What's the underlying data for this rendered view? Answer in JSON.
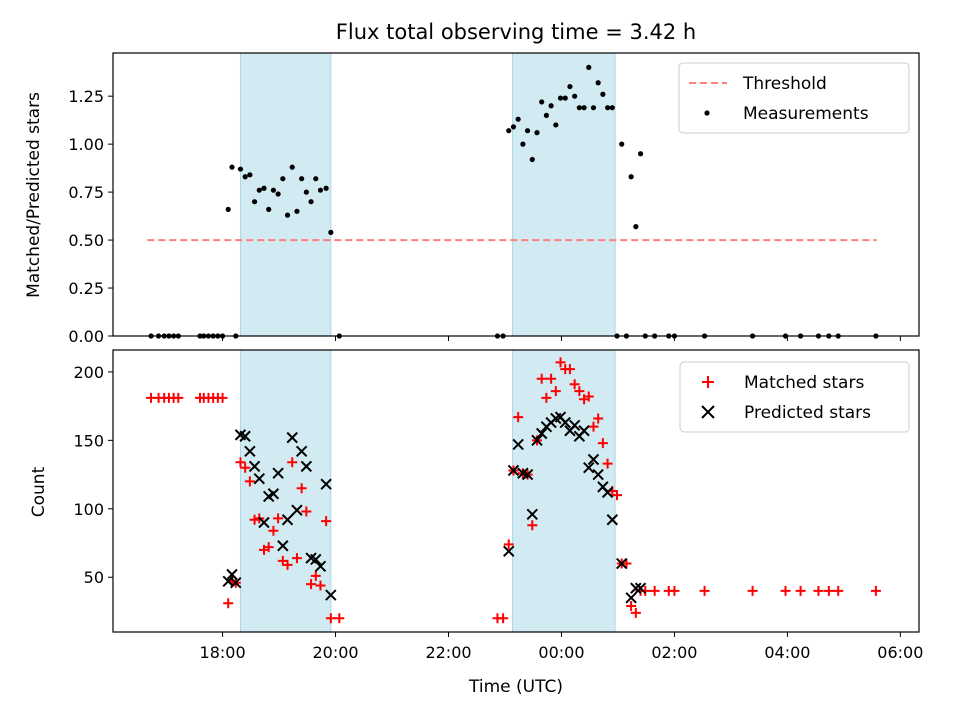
{
  "title": "Flux total observing time = 3.42 h",
  "colors": {
    "threshold": "#ff7f7f",
    "measurements": "#000000",
    "matched": "#ff0000",
    "predicted": "#000000",
    "shade": "#add8e6"
  },
  "chart_data": [
    {
      "type": "scatter",
      "panel": "top",
      "ylabel": "Matched/Predicted stars",
      "xlabel": "",
      "ylim": [
        0,
        1.475
      ],
      "yticks": [
        0.0,
        0.25,
        0.5,
        0.75,
        1.0,
        1.25
      ],
      "ytick_labels": [
        "0.00",
        "0.25",
        "0.50",
        "0.75",
        "1.00",
        "1.25"
      ],
      "shaded_intervals": [
        [
          "18:19",
          "19:55"
        ],
        [
          "23:08",
          "00:57"
        ]
      ],
      "legend_position": "upper right",
      "threshold": {
        "name": "Threshold",
        "y": 0.5,
        "x_start": "16:40",
        "x_end": "05:35"
      },
      "series": [
        {
          "name": "Measurements",
          "marker": "dot",
          "points": [
            [
              "16:44",
              0
            ],
            [
              "16:52",
              0
            ],
            [
              "16:58",
              0
            ],
            [
              "17:03",
              0
            ],
            [
              "17:08",
              0
            ],
            [
              "17:13",
              0
            ],
            [
              "17:36",
              0
            ],
            [
              "17:40",
              0
            ],
            [
              "17:45",
              0
            ],
            [
              "17:50",
              0
            ],
            [
              "17:55",
              0
            ],
            [
              "18:00",
              0
            ],
            [
              "18:06",
              0.66
            ],
            [
              "18:10",
              0.88
            ],
            [
              "18:14",
              0
            ],
            [
              "18:19",
              0.87
            ],
            [
              "18:24",
              0.83
            ],
            [
              "18:29",
              0.84
            ],
            [
              "18:34",
              0.7
            ],
            [
              "18:39",
              0.76
            ],
            [
              "18:44",
              0.77
            ],
            [
              "18:49",
              0.66
            ],
            [
              "18:54",
              0.76
            ],
            [
              "18:59",
              0.74
            ],
            [
              "19:04",
              0.82
            ],
            [
              "19:09",
              0.63
            ],
            [
              "19:14",
              0.88
            ],
            [
              "19:19",
              0.65
            ],
            [
              "19:24",
              0.82
            ],
            [
              "19:29",
              0.75
            ],
            [
              "19:34",
              0.7
            ],
            [
              "19:39",
              0.82
            ],
            [
              "19:44",
              0.76
            ],
            [
              "19:50",
              0.77
            ],
            [
              "19:55",
              0.54
            ],
            [
              "20:04",
              0
            ],
            [
              "22:52",
              0
            ],
            [
              "22:58",
              0
            ],
            [
              "23:04",
              1.07
            ],
            [
              "23:09",
              1.09
            ],
            [
              "23:14",
              1.13
            ],
            [
              "23:19",
              1.0
            ],
            [
              "23:24",
              1.07
            ],
            [
              "23:29",
              0.92
            ],
            [
              "23:34",
              1.06
            ],
            [
              "23:39",
              1.22
            ],
            [
              "23:44",
              1.15
            ],
            [
              "23:49",
              1.2
            ],
            [
              "23:54",
              1.1
            ],
            [
              "23:59",
              1.24
            ],
            [
              "00:04",
              1.24
            ],
            [
              "00:09",
              1.3
            ],
            [
              "00:14",
              1.25
            ],
            [
              "00:19",
              1.19
            ],
            [
              "00:24",
              1.19
            ],
            [
              "00:29",
              1.4
            ],
            [
              "00:34",
              1.19
            ],
            [
              "00:39",
              1.32
            ],
            [
              "00:44",
              1.26
            ],
            [
              "00:49",
              1.19
            ],
            [
              "00:54",
              1.19
            ],
            [
              "00:59",
              0
            ],
            [
              "01:04",
              1.0
            ],
            [
              "01:09",
              0
            ],
            [
              "01:14",
              0.83
            ],
            [
              "01:19",
              0.57
            ],
            [
              "01:24",
              0.95
            ],
            [
              "01:29",
              0
            ],
            [
              "01:39",
              0
            ],
            [
              "01:54",
              0
            ],
            [
              "02:00",
              0
            ],
            [
              "02:32",
              0
            ],
            [
              "03:23",
              0
            ],
            [
              "03:58",
              0
            ],
            [
              "04:14",
              0
            ],
            [
              "04:33",
              0
            ],
            [
              "04:44",
              0
            ],
            [
              "04:54",
              0
            ],
            [
              "05:34",
              0
            ]
          ]
        }
      ]
    },
    {
      "type": "scatter",
      "panel": "bottom",
      "ylabel": "Count",
      "xlabel": "Time (UTC)",
      "ylim": [
        10,
        216
      ],
      "yticks": [
        50,
        100,
        150,
        200
      ],
      "ytick_labels": [
        "50",
        "100",
        "150",
        "200"
      ],
      "xticks": [
        "18:00",
        "20:00",
        "22:00",
        "00:00",
        "02:00",
        "04:00",
        "06:00"
      ],
      "shaded_intervals": [
        [
          "18:19",
          "19:55"
        ],
        [
          "23:08",
          "00:57"
        ]
      ],
      "legend_position": "upper right",
      "series": [
        {
          "name": "Matched stars",
          "marker": "plus",
          "points": [
            [
              "16:44",
              181
            ],
            [
              "16:52",
              181
            ],
            [
              "16:58",
              181
            ],
            [
              "17:03",
              181
            ],
            [
              "17:08",
              181
            ],
            [
              "17:13",
              181
            ],
            [
              "17:36",
              181
            ],
            [
              "17:40",
              181
            ],
            [
              "17:45",
              181
            ],
            [
              "17:50",
              181
            ],
            [
              "17:55",
              181
            ],
            [
              "18:00",
              181
            ],
            [
              "18:06",
              31
            ],
            [
              "18:10",
              47
            ],
            [
              "18:14",
              46
            ],
            [
              "18:19",
              134
            ],
            [
              "18:24",
              130
            ],
            [
              "18:29",
              120
            ],
            [
              "18:34",
              92
            ],
            [
              "18:39",
              93
            ],
            [
              "18:44",
              70
            ],
            [
              "18:49",
              72
            ],
            [
              "18:54",
              84
            ],
            [
              "18:59",
              93
            ],
            [
              "19:04",
              62
            ],
            [
              "19:09",
              59
            ],
            [
              "19:14",
              134
            ],
            [
              "19:19",
              64
            ],
            [
              "19:24",
              115
            ],
            [
              "19:29",
              98
            ],
            [
              "19:34",
              45
            ],
            [
              "19:39",
              51
            ],
            [
              "19:44",
              44
            ],
            [
              "19:50",
              91
            ],
            [
              "19:55",
              20
            ],
            [
              "20:04",
              20
            ],
            [
              "22:52",
              20
            ],
            [
              "22:58",
              20
            ],
            [
              "23:04",
              74
            ],
            [
              "23:09",
              128
            ],
            [
              "23:14",
              167
            ],
            [
              "23:19",
              126
            ],
            [
              "23:24",
              125
            ],
            [
              "23:29",
              88
            ],
            [
              "23:34",
              150
            ],
            [
              "23:39",
              195
            ],
            [
              "23:44",
              181
            ],
            [
              "23:49",
              195
            ],
            [
              "23:54",
              186
            ],
            [
              "23:59",
              207
            ],
            [
              "00:04",
              202
            ],
            [
              "00:09",
              202
            ],
            [
              "00:14",
              191
            ],
            [
              "00:19",
              186
            ],
            [
              "00:24",
              180
            ],
            [
              "00:29",
              182
            ],
            [
              "00:34",
              160
            ],
            [
              "00:39",
              166
            ],
            [
              "00:44",
              148
            ],
            [
              "00:49",
              133
            ],
            [
              "00:54",
              113
            ],
            [
              "00:59",
              110
            ],
            [
              "01:04",
              60
            ],
            [
              "01:09",
              60
            ],
            [
              "01:14",
              29
            ],
            [
              "01:19",
              24
            ],
            [
              "01:24",
              40
            ],
            [
              "01:29",
              40
            ],
            [
              "01:39",
              40
            ],
            [
              "01:54",
              40
            ],
            [
              "02:00",
              40
            ],
            [
              "02:32",
              40
            ],
            [
              "03:23",
              40
            ],
            [
              "03:58",
              40
            ],
            [
              "04:14",
              40
            ],
            [
              "04:33",
              40
            ],
            [
              "04:44",
              40
            ],
            [
              "04:54",
              40
            ],
            [
              "05:34",
              40
            ]
          ]
        },
        {
          "name": "Predicted stars",
          "marker": "x",
          "points": [
            [
              "18:06",
              47
            ],
            [
              "18:10",
              52
            ],
            [
              "18:14",
              46
            ],
            [
              "18:19",
              154
            ],
            [
              "18:24",
              153
            ],
            [
              "18:29",
              142
            ],
            [
              "18:34",
              131
            ],
            [
              "18:39",
              122
            ],
            [
              "18:44",
              90
            ],
            [
              "18:49",
              109
            ],
            [
              "18:54",
              111
            ],
            [
              "18:59",
              126
            ],
            [
              "19:04",
              73
            ],
            [
              "19:09",
              92
            ],
            [
              "19:14",
              152
            ],
            [
              "19:19",
              99
            ],
            [
              "19:24",
              142
            ],
            [
              "19:29",
              131
            ],
            [
              "19:34",
              64
            ],
            [
              "19:39",
              63
            ],
            [
              "19:44",
              58
            ],
            [
              "19:50",
              118
            ],
            [
              "19:55",
              37
            ],
            [
              "23:04",
              69
            ],
            [
              "23:09",
              128
            ],
            [
              "23:14",
              147
            ],
            [
              "23:19",
              126
            ],
            [
              "23:24",
              125
            ],
            [
              "23:29",
              96
            ],
            [
              "23:34",
              150
            ],
            [
              "23:39",
              155
            ],
            [
              "23:44",
              160
            ],
            [
              "23:49",
              163
            ],
            [
              "23:54",
              166
            ],
            [
              "23:59",
              167
            ],
            [
              "00:04",
              163
            ],
            [
              "00:09",
              157
            ],
            [
              "00:14",
              161
            ],
            [
              "00:19",
              153
            ],
            [
              "00:24",
              157
            ],
            [
              "00:29",
              130
            ],
            [
              "00:34",
              136
            ],
            [
              "00:39",
              125
            ],
            [
              "00:44",
              116
            ],
            [
              "00:49",
              112
            ],
            [
              "00:54",
              92
            ],
            [
              "01:04",
              60
            ],
            [
              "01:14",
              35
            ],
            [
              "01:19",
              42
            ],
            [
              "01:24",
              42
            ]
          ]
        }
      ]
    }
  ]
}
